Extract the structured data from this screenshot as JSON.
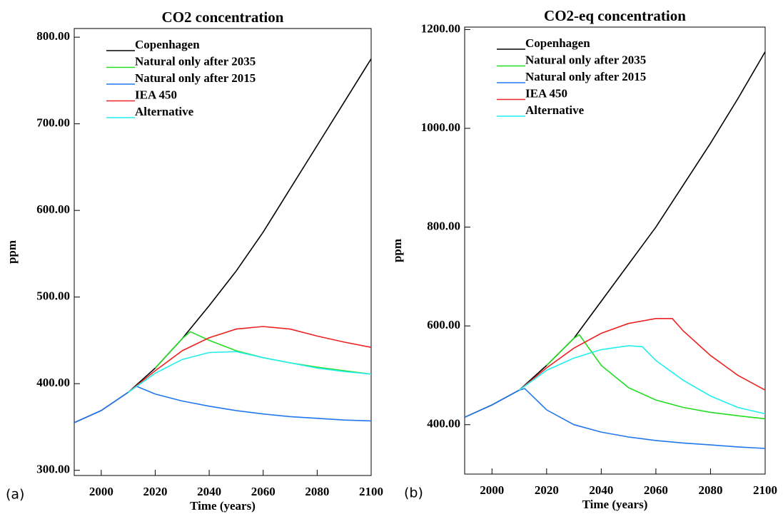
{
  "chart_data": [
    {
      "type": "line",
      "title": "CO2 concentration",
      "panel_label": "(a)",
      "xlabel": "Time (years)",
      "ylabel": "ppm",
      "xlim": [
        1990,
        2100
      ],
      "xticks": [
        2000,
        2020,
        2040,
        2060,
        2080,
        2100
      ],
      "ylim": [
        294,
        810
      ],
      "yticks": [
        {
          "value": 300,
          "label": "300.00"
        },
        {
          "value": 400,
          "label": "400.00"
        },
        {
          "value": 500,
          "label": "500.00"
        },
        {
          "value": 600,
          "label": "600.00"
        },
        {
          "value": 700,
          "label": "700.00"
        },
        {
          "value": 800,
          "label": "800.00"
        }
      ],
      "legend": "upper left",
      "series": [
        {
          "name": "Copenhagen",
          "color": "#000000",
          "x": [
            1990,
            2000,
            2010,
            2020,
            2030,
            2040,
            2050,
            2060,
            2070,
            2080,
            2090,
            2100
          ],
          "values": [
            355,
            369,
            390,
            418,
            452,
            490,
            530,
            575,
            625,
            675,
            725,
            775
          ]
        },
        {
          "name": "Natural only  after 2035",
          "color": "#22dd22",
          "x": [
            2020,
            2030,
            2033,
            2040,
            2050,
            2060,
            2070,
            2080,
            2090,
            2100
          ],
          "values": [
            418,
            452,
            460,
            450,
            438,
            430,
            424,
            419,
            415,
            411
          ]
        },
        {
          "name": "Natural only  after 2015",
          "color": "#2277ee",
          "x": [
            1990,
            2000,
            2010,
            2013,
            2020,
            2030,
            2040,
            2050,
            2060,
            2070,
            2080,
            2090,
            2100
          ],
          "values": [
            355,
            369,
            390,
            397,
            388,
            380,
            374,
            369,
            365,
            362,
            360,
            358,
            357
          ]
        },
        {
          "name": "IEA 450",
          "color": "#ee2222",
          "x": [
            2010,
            2020,
            2030,
            2040,
            2050,
            2060,
            2070,
            2080,
            2090,
            2100
          ],
          "values": [
            390,
            415,
            438,
            453,
            463,
            466,
            463,
            455,
            448,
            442
          ]
        },
        {
          "name": "Alternative",
          "color": "#22eeee",
          "x": [
            2010,
            2020,
            2030,
            2040,
            2050,
            2060,
            2070,
            2080,
            2090,
            2100
          ],
          "values": [
            390,
            412,
            428,
            436,
            437,
            430,
            424,
            418,
            414,
            411
          ]
        }
      ]
    },
    {
      "type": "line",
      "title": "CO2-eq  concentration",
      "panel_label": "(b)",
      "xlabel": "Time (years)",
      "ylabel": "ppm",
      "xlim": [
        1990,
        2100
      ],
      "xticks": [
        2000,
        2020,
        2040,
        2060,
        2080,
        2100
      ],
      "ylim": [
        300,
        1205
      ],
      "yticks": [
        {
          "value": 400,
          "label": "400.00"
        },
        {
          "value": 600,
          "label": "600.00"
        },
        {
          "value": 800,
          "label": "800.00"
        },
        {
          "value": 1000,
          "label": "1000.00"
        },
        {
          "value": 1200,
          "label": "1200.00"
        }
      ],
      "legend": "upper left",
      "series": [
        {
          "name": "Copenhagen",
          "color": "#000000",
          "x": [
            1990,
            2000,
            2010,
            2020,
            2030,
            2040,
            2050,
            2060,
            2070,
            2080,
            2090,
            2100
          ],
          "values": [
            415,
            440,
            470,
            520,
            575,
            650,
            725,
            800,
            885,
            970,
            1060,
            1155
          ]
        },
        {
          "name": "Natural only  after 2035",
          "color": "#22dd22",
          "x": [
            2020,
            2030,
            2032,
            2040,
            2050,
            2060,
            2070,
            2080,
            2090,
            2100
          ],
          "values": [
            520,
            575,
            582,
            520,
            475,
            450,
            435,
            425,
            418,
            412
          ]
        },
        {
          "name": "Natural only  after 2015",
          "color": "#2277ee",
          "x": [
            1990,
            2000,
            2010,
            2012,
            2020,
            2030,
            2040,
            2050,
            2060,
            2070,
            2080,
            2090,
            2100
          ],
          "values": [
            415,
            440,
            470,
            473,
            430,
            400,
            385,
            375,
            368,
            363,
            359,
            355,
            352
          ]
        },
        {
          "name": "IEA 450",
          "color": "#ee2222",
          "x": [
            2010,
            2020,
            2030,
            2040,
            2050,
            2060,
            2066,
            2070,
            2080,
            2090,
            2100
          ],
          "values": [
            470,
            515,
            555,
            585,
            605,
            615,
            615,
            590,
            540,
            500,
            470
          ]
        },
        {
          "name": "Alternative",
          "color": "#22eeee",
          "x": [
            2010,
            2020,
            2030,
            2040,
            2050,
            2055,
            2060,
            2070,
            2080,
            2090,
            2100
          ],
          "values": [
            470,
            510,
            535,
            552,
            560,
            558,
            530,
            490,
            458,
            435,
            422
          ]
        }
      ]
    }
  ]
}
